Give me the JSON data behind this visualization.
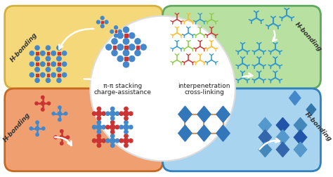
{
  "bg_color": "#ffffff",
  "quad_colors": {
    "tl": "#f5d87a",
    "tr": "#b8e0a0",
    "bl": "#f0a070",
    "br": "#a8d4f0"
  },
  "quad_border": {
    "tl": "#d4b040",
    "tr": "#60a860",
    "bl": "#c86820",
    "br": "#3080c0"
  },
  "circle_color": "#ffffff",
  "circle_edge": "#dddddd",
  "blue": "#4488cc",
  "red": "#cc3333",
  "green_line": "#44aa44",
  "yellow_node": "#ddcc44",
  "label_pi": "π-π stacking",
  "label_interp": "interpenetration",
  "label_charge": "charge-assistance",
  "label_cross": "cross-linking",
  "label_hbond": "H-bonding",
  "fw": 4.74,
  "fh": 2.52,
  "dpi": 100
}
